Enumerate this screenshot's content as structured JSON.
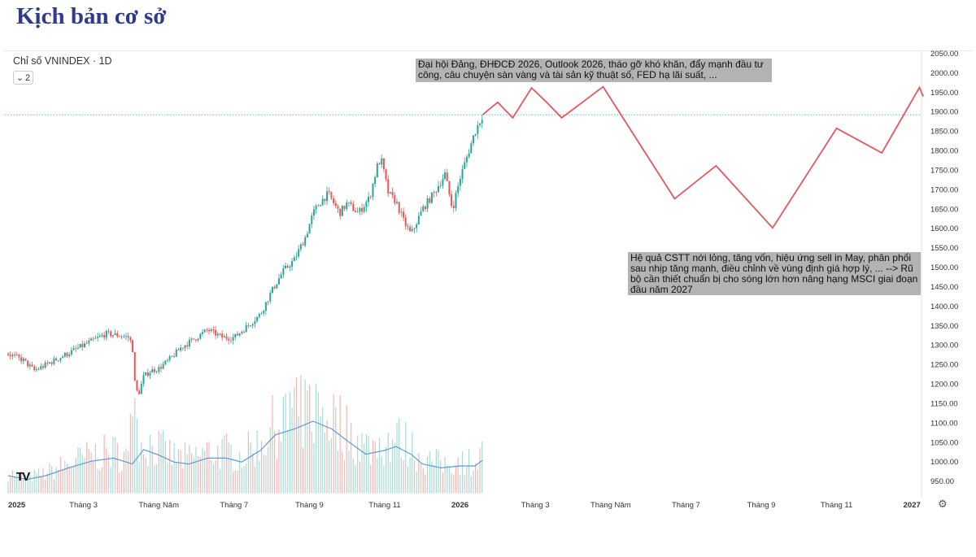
{
  "page": {
    "title": "Kịch bản cơ sở"
  },
  "chart_header": {
    "name": "Chỉ số VNINDEX · 1D",
    "interval_value": "2",
    "logo": "TV",
    "settings_icon": "gear-icon"
  },
  "annotations": {
    "top": "Đại hội Đảng, ĐHĐCĐ 2026, Outlook 2026, tháo gỡ khó khăn, đẩy mạnh đầu tư công, câu chuyện sàn vàng và tài sản kỹ thuật số, FED hạ lãi suất, ...",
    "middle": "Hệ quả CSTT nới lỏng, tăng vốn, hiệu ứng sell in May, phân phối sau nhịp tăng mạnh, điều chỉnh về vùng định giá hợp lý, ... --> Rũ bộ cần thiết chuẩn bị cho sóng lớn hơn nâng hạng MSCI giai đoạn đầu năm 2027"
  },
  "colors": {
    "up": "#26a69a",
    "down": "#ef5350",
    "forecast": "#e8565d",
    "volume_ma": "#5b9bd5",
    "title": "#2e3a8c",
    "note_bg": "#b3b3b3"
  },
  "chart_data": {
    "type": "line",
    "title": "Chỉ số VNINDEX · 1D",
    "ylim": [
      920,
      2060
    ],
    "y_ticks": [
      "2050.00",
      "2000.00",
      "1950.00",
      "1900.00",
      "1850.00",
      "1800.00",
      "1750.00",
      "1700.00",
      "1650.00",
      "1600.00",
      "1550.00",
      "1500.00",
      "1450.00",
      "1400.00",
      "1350.00",
      "1300.00",
      "1250.00",
      "1200.00",
      "1150.00",
      "1100.00",
      "1050.00",
      "1000.00",
      "950.00"
    ],
    "y_tick_values": [
      2050,
      2000,
      1950,
      1900,
      1850,
      1800,
      1750,
      1700,
      1650,
      1600,
      1550,
      1500,
      1450,
      1400,
      1350,
      1300,
      1250,
      1200,
      1150,
      1100,
      1050,
      1000,
      950
    ],
    "x_labels": [
      "2025",
      "Tháng 3",
      "Tháng Năm",
      "Tháng 7",
      "Tháng 9",
      "Tháng 11",
      "2026",
      "Tháng 3",
      "Tháng Năm",
      "Tháng 7",
      "Tháng 9",
      "Tháng 11",
      "2027"
    ],
    "x_label_months": [
      0,
      2,
      4,
      6,
      8,
      10,
      12,
      14,
      16,
      18,
      20,
      22,
      24
    ],
    "current_level": 1893,
    "price_path_note": "historical daily VNINDEX closes, approximate monthly anchors",
    "price_series": [
      {
        "m": 0.0,
        "v": 1278
      },
      {
        "m": 0.4,
        "v": 1262
      },
      {
        "m": 0.7,
        "v": 1235
      },
      {
        "m": 1.0,
        "v": 1250
      },
      {
        "m": 1.4,
        "v": 1270
      },
      {
        "m": 1.8,
        "v": 1290
      },
      {
        "m": 2.2,
        "v": 1310
      },
      {
        "m": 2.6,
        "v": 1330
      },
      {
        "m": 3.0,
        "v": 1325
      },
      {
        "m": 3.2,
        "v": 1320
      },
      {
        "m": 3.3,
        "v": 1300
      },
      {
        "m": 3.35,
        "v": 1210
      },
      {
        "m": 3.45,
        "v": 1170
      },
      {
        "m": 3.6,
        "v": 1220
      },
      {
        "m": 3.8,
        "v": 1235
      },
      {
        "m": 4.0,
        "v": 1240
      },
      {
        "m": 4.3,
        "v": 1265
      },
      {
        "m": 4.6,
        "v": 1295
      },
      {
        "m": 5.0,
        "v": 1320
      },
      {
        "m": 5.3,
        "v": 1340
      },
      {
        "m": 5.7,
        "v": 1320
      },
      {
        "m": 6.0,
        "v": 1320
      },
      {
        "m": 6.3,
        "v": 1345
      },
      {
        "m": 6.7,
        "v": 1380
      },
      {
        "m": 7.0,
        "v": 1440
      },
      {
        "m": 7.3,
        "v": 1490
      },
      {
        "m": 7.6,
        "v": 1520
      },
      {
        "m": 7.9,
        "v": 1580
      },
      {
        "m": 8.1,
        "v": 1640
      },
      {
        "m": 8.3,
        "v": 1670
      },
      {
        "m": 8.5,
        "v": 1690
      },
      {
        "m": 8.8,
        "v": 1640
      },
      {
        "m": 9.0,
        "v": 1665
      },
      {
        "m": 9.3,
        "v": 1640
      },
      {
        "m": 9.6,
        "v": 1680
      },
      {
        "m": 9.8,
        "v": 1760
      },
      {
        "m": 9.9,
        "v": 1780
      },
      {
        "m": 10.1,
        "v": 1690
      },
      {
        "m": 10.3,
        "v": 1670
      },
      {
        "m": 10.5,
        "v": 1620
      },
      {
        "m": 10.7,
        "v": 1585
      },
      {
        "m": 11.0,
        "v": 1650
      },
      {
        "m": 11.3,
        "v": 1690
      },
      {
        "m": 11.6,
        "v": 1740
      },
      {
        "m": 11.8,
        "v": 1650
      },
      {
        "m": 12.0,
        "v": 1730
      },
      {
        "m": 12.2,
        "v": 1790
      },
      {
        "m": 12.4,
        "v": 1850
      },
      {
        "m": 12.6,
        "v": 1893
      }
    ],
    "volume_ma_series": [
      {
        "m": 0.0,
        "v": 965
      },
      {
        "m": 0.5,
        "v": 955
      },
      {
        "m": 1.0,
        "v": 965
      },
      {
        "m": 1.6,
        "v": 985
      },
      {
        "m": 2.2,
        "v": 1002
      },
      {
        "m": 2.8,
        "v": 1010
      },
      {
        "m": 3.3,
        "v": 995
      },
      {
        "m": 3.6,
        "v": 1032
      },
      {
        "m": 4.0,
        "v": 1018
      },
      {
        "m": 4.4,
        "v": 1000
      },
      {
        "m": 4.8,
        "v": 995
      },
      {
        "m": 5.3,
        "v": 1010
      },
      {
        "m": 5.8,
        "v": 1010
      },
      {
        "m": 6.2,
        "v": 1000
      },
      {
        "m": 6.7,
        "v": 1030
      },
      {
        "m": 7.1,
        "v": 1070
      },
      {
        "m": 7.6,
        "v": 1085
      },
      {
        "m": 8.1,
        "v": 1105
      },
      {
        "m": 8.6,
        "v": 1085
      },
      {
        "m": 9.0,
        "v": 1055
      },
      {
        "m": 9.5,
        "v": 1020
      },
      {
        "m": 10.0,
        "v": 1030
      },
      {
        "m": 10.3,
        "v": 1040
      },
      {
        "m": 10.7,
        "v": 1020
      },
      {
        "m": 11.0,
        "v": 995
      },
      {
        "m": 11.5,
        "v": 985
      },
      {
        "m": 12.0,
        "v": 990
      },
      {
        "m": 12.4,
        "v": 990
      },
      {
        "m": 12.6,
        "v": 1005
      }
    ],
    "forecast_series": [
      {
        "m": 12.6,
        "v": 1893
      },
      {
        "m": 13.0,
        "v": 1925
      },
      {
        "m": 13.4,
        "v": 1885
      },
      {
        "m": 13.9,
        "v": 1962
      },
      {
        "m": 14.3,
        "v": 1925
      },
      {
        "m": 14.7,
        "v": 1885
      },
      {
        "m": 15.8,
        "v": 1965
      },
      {
        "m": 17.7,
        "v": 1677
      },
      {
        "m": 18.8,
        "v": 1762
      },
      {
        "m": 20.3,
        "v": 1602
      },
      {
        "m": 22.0,
        "v": 1858
      },
      {
        "m": 23.2,
        "v": 1795
      },
      {
        "m": 24.2,
        "v": 1963
      },
      {
        "m": 24.3,
        "v": 1940
      }
    ]
  }
}
